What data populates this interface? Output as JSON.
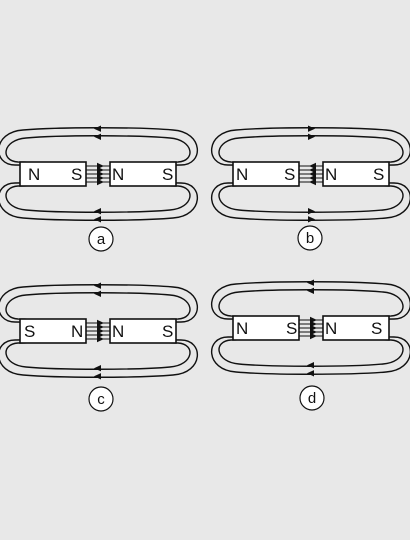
{
  "colors": {
    "background": "#e8e8e8",
    "stroke": "#111111",
    "magnet_fill": "#ffffff"
  },
  "diagrams": [
    {
      "caption": "a",
      "left_magnet": {
        "left_pole": "N",
        "right_pole": "S"
      },
      "right_magnet": {
        "left_pole": "N",
        "right_pole": "S"
      },
      "gap_arrows": "right",
      "outer_arrows": "left"
    },
    {
      "caption": "b",
      "left_magnet": {
        "left_pole": "N",
        "right_pole": "S"
      },
      "right_magnet": {
        "left_pole": "N",
        "right_pole": "S"
      },
      "gap_arrows": "left",
      "outer_arrows": "right"
    },
    {
      "caption": "c",
      "left_magnet": {
        "left_pole": "S",
        "right_pole": "N"
      },
      "right_magnet": {
        "left_pole": "N",
        "right_pole": "S"
      },
      "gap_arrows": "right",
      "outer_arrows": "left"
    },
    {
      "caption": "d",
      "left_magnet": {
        "left_pole": "N",
        "right_pole": "S"
      },
      "right_magnet": {
        "left_pole": "N",
        "right_pole": "S"
      },
      "gap_arrows": "right",
      "outer_arrows": "left"
    }
  ]
}
